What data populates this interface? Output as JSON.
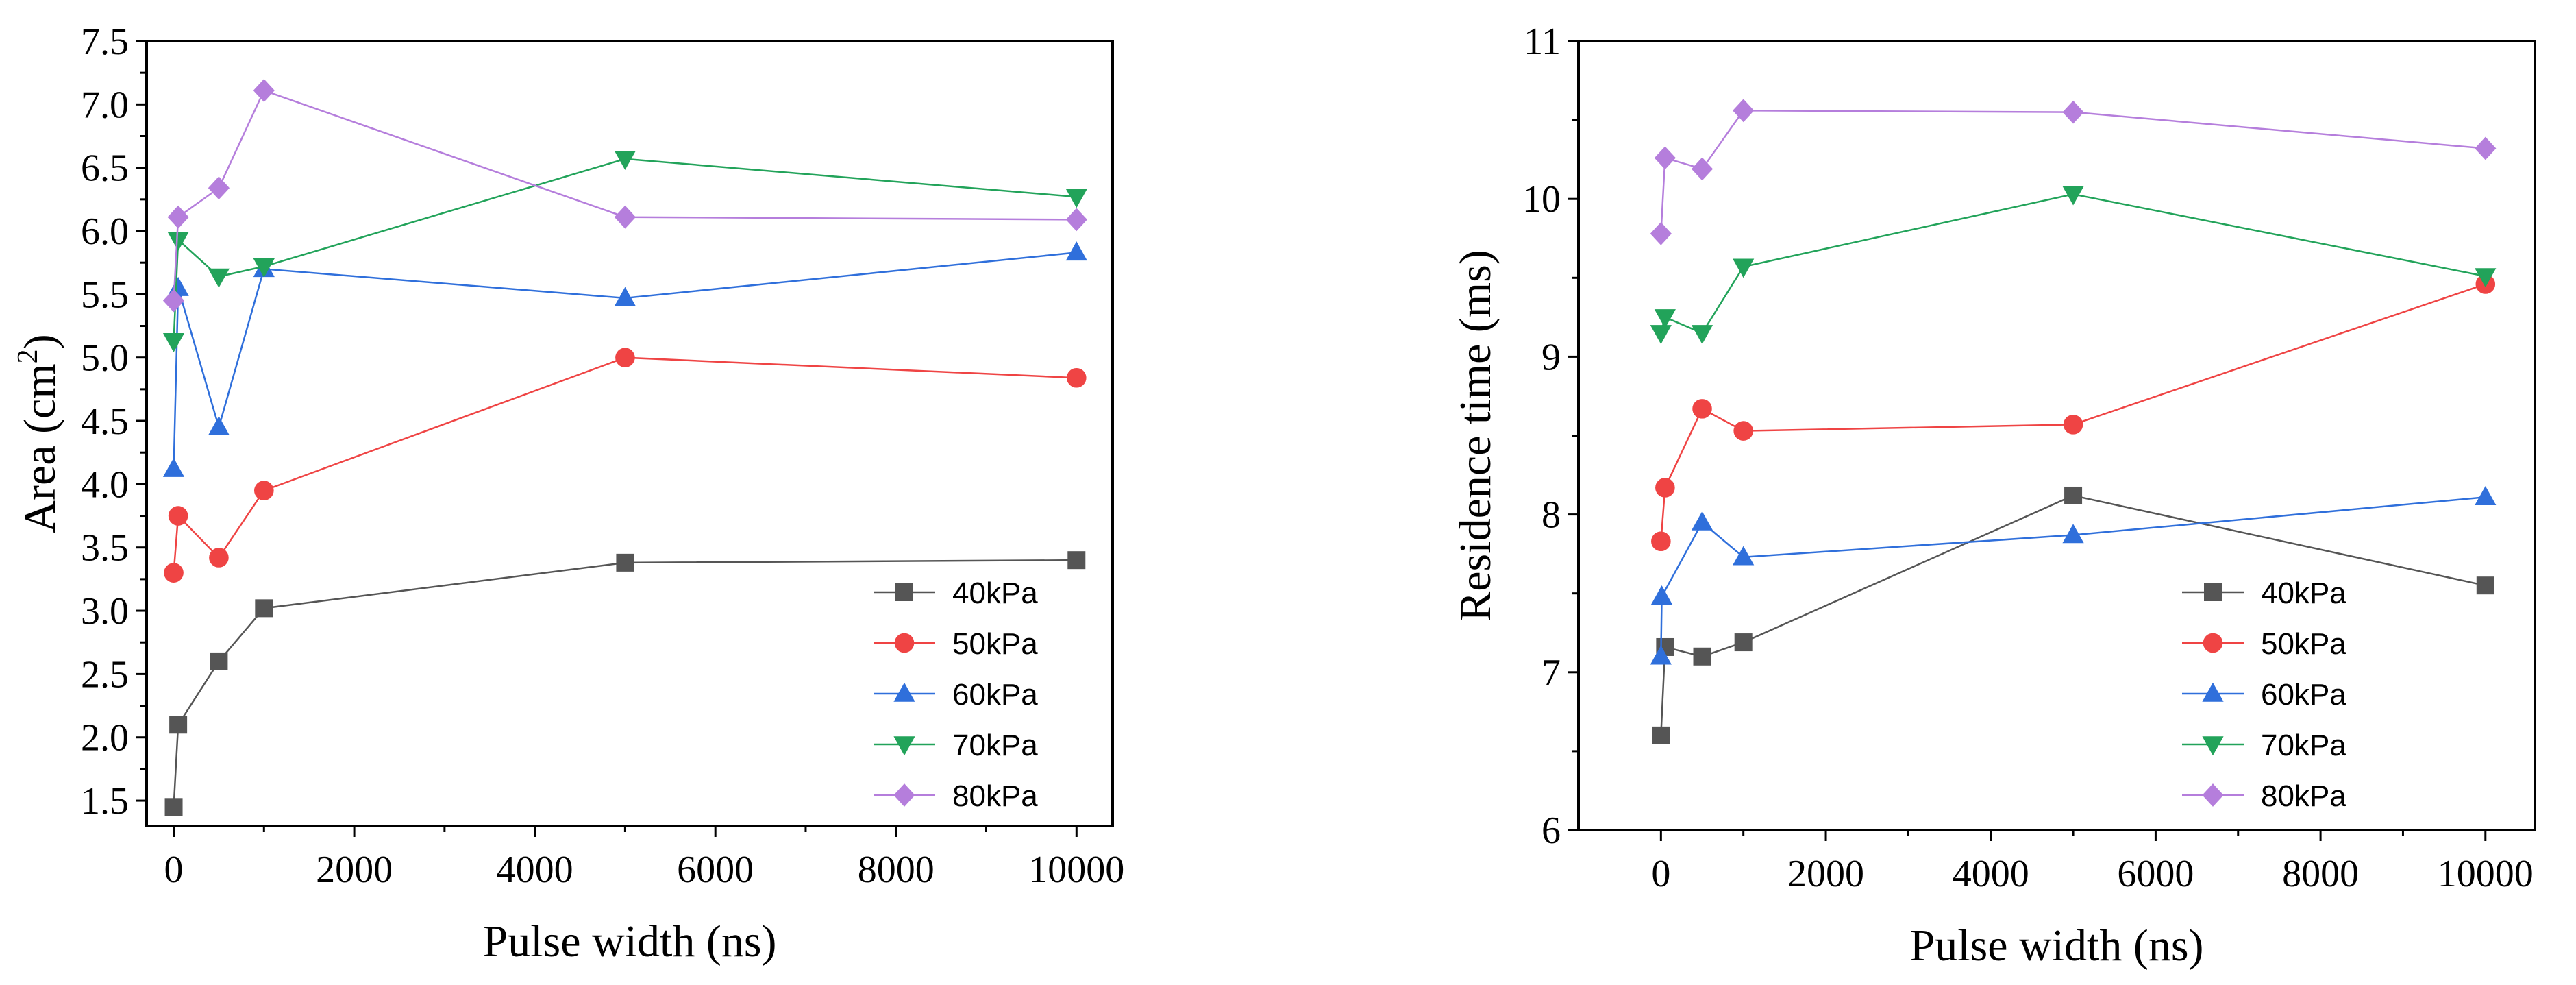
{
  "chart_data": [
    {
      "type": "line",
      "title": "",
      "xlabel": "Pulse width (ns)",
      "ylabel": "Area (cm",
      "ylabel_sup": "2",
      "ylabel_close": ")",
      "xlim": [
        -300,
        10400
      ],
      "ylim": [
        1.3,
        7.5
      ],
      "xticks": [
        0,
        2000,
        4000,
        6000,
        8000,
        10000
      ],
      "yticks": [
        1.5,
        2.0,
        2.5,
        3.0,
        3.5,
        4.0,
        4.5,
        5.0,
        5.5,
        6.0,
        6.5,
        7.0,
        7.5
      ],
      "ytick_labels": [
        "1.5",
        "2.0",
        "2.5",
        "3.0",
        "3.5",
        "4.0",
        "4.5",
        "5.0",
        "5.5",
        "6.0",
        "6.5",
        "7.0",
        "7.5"
      ],
      "grid": false,
      "legend_position": "bottom-right",
      "x": [
        0,
        50,
        500,
        1000,
        5000,
        10000
      ],
      "series": [
        {
          "name": "40kPa",
          "color": "#555555",
          "marker": "square",
          "values": [
            1.45,
            2.1,
            2.6,
            3.02,
            3.38,
            3.4
          ]
        },
        {
          "name": "50kPa",
          "color": "#ef4444",
          "marker": "circle",
          "values": [
            3.3,
            3.75,
            3.42,
            3.95,
            5.0,
            4.84
          ]
        },
        {
          "name": "60kPa",
          "color": "#2f6fdb",
          "marker": "triangle-up",
          "values": [
            4.12,
            5.55,
            4.45,
            5.7,
            5.47,
            5.83
          ]
        },
        {
          "name": "70kPa",
          "color": "#22a35a",
          "marker": "triangle-down",
          "values": [
            5.13,
            5.93,
            5.64,
            5.72,
            6.57,
            6.27
          ]
        },
        {
          "name": "80kPa",
          "color": "#b57edc",
          "marker": "diamond",
          "values": [
            5.45,
            6.11,
            6.34,
            7.11,
            6.11,
            6.09
          ]
        }
      ]
    },
    {
      "type": "line",
      "title": "",
      "xlabel": "Pulse width (ns)",
      "ylabel": "Residence time (ms)",
      "xlim": [
        -1000,
        10600
      ],
      "ylim": [
        6,
        11
      ],
      "xticks": [
        0,
        2000,
        4000,
        6000,
        8000,
        10000
      ],
      "yticks": [
        6,
        7,
        8,
        9,
        10,
        11
      ],
      "ytick_labels": [
        "6",
        "7",
        "8",
        "9",
        "10",
        "11"
      ],
      "grid": false,
      "legend_position": "bottom-right",
      "series": [
        {
          "name": "40kPa",
          "color": "#555555",
          "marker": "square",
          "x": [
            0,
            50,
            500,
            1000,
            5000,
            10000
          ],
          "values": [
            6.6,
            7.16,
            7.1,
            7.19,
            8.12,
            7.55
          ]
        },
        {
          "name": "50kPa",
          "color": "#ef4444",
          "marker": "circle",
          "x": [
            0,
            50,
            500,
            1000,
            5000,
            10000
          ],
          "values": [
            7.83,
            8.17,
            8.67,
            8.53,
            8.57,
            9.46
          ]
        },
        {
          "name": "60kPa",
          "color": "#2f6fdb",
          "marker": "triangle-up",
          "x": [
            0,
            10,
            500,
            1000,
            5000,
            10000
          ],
          "values": [
            7.1,
            7.48,
            7.95,
            7.73,
            7.87,
            8.11
          ]
        },
        {
          "name": "70kPa",
          "color": "#22a35a",
          "marker": "triangle-down",
          "x": [
            0,
            50,
            500,
            1000,
            5000,
            10000
          ],
          "values": [
            9.15,
            9.25,
            9.15,
            9.57,
            10.03,
            9.51
          ]
        },
        {
          "name": "80kPa",
          "color": "#b57edc",
          "marker": "diamond",
          "x": [
            0,
            50,
            500,
            1000,
            5000,
            10000
          ],
          "values": [
            9.78,
            10.26,
            10.19,
            10.56,
            10.55,
            10.32
          ]
        }
      ]
    }
  ]
}
